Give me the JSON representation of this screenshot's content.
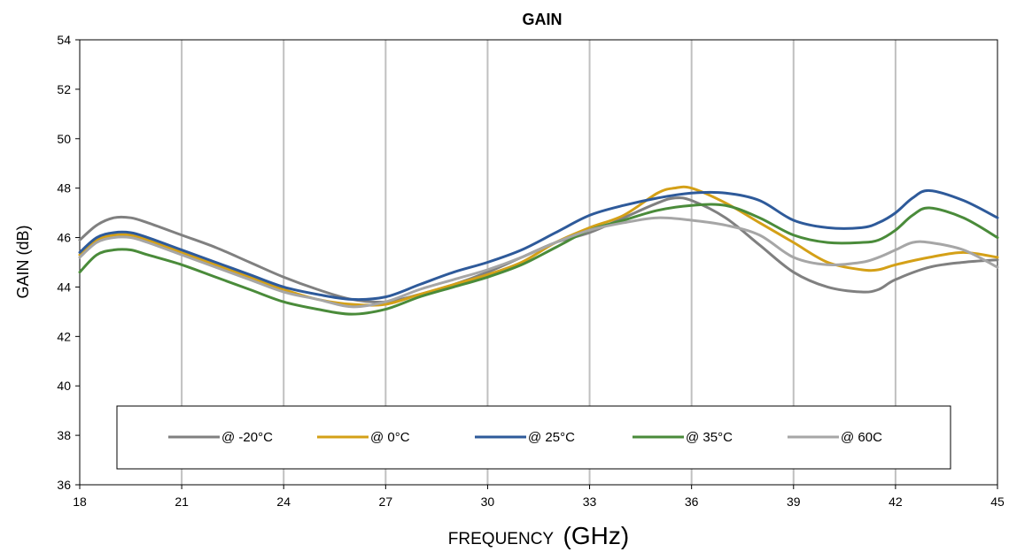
{
  "chart_data": {
    "type": "line",
    "title": "GAIN",
    "xlabel": "FREQUENCY",
    "xlabel_unit": "(GHz)",
    "ylabel": "GAIN (dB)",
    "xlim": [
      18,
      45
    ],
    "ylim": [
      36,
      54
    ],
    "xticks": [
      18,
      21,
      24,
      27,
      30,
      33,
      36,
      39,
      42,
      45
    ],
    "yticks": [
      36,
      38,
      40,
      42,
      44,
      46,
      48,
      50,
      52,
      54
    ],
    "grid": "vertical",
    "legend_position": "bottom-inside",
    "series": [
      {
        "name": "@ -20°C",
        "color": "#808080",
        "x": [
          18,
          18.5,
          19,
          19.5,
          20,
          21,
          22,
          23,
          24,
          25,
          26,
          27,
          28,
          29,
          30,
          31,
          32,
          33,
          34,
          35,
          35.5,
          36,
          37,
          38,
          39,
          40,
          41,
          41.5,
          42,
          43,
          44,
          45
        ],
        "y": [
          45.9,
          46.5,
          46.8,
          46.8,
          46.6,
          46.1,
          45.6,
          45.0,
          44.4,
          43.9,
          43.5,
          43.4,
          43.7,
          44.1,
          44.6,
          45.2,
          45.8,
          46.2,
          46.8,
          47.4,
          47.6,
          47.5,
          46.8,
          45.7,
          44.6,
          44.0,
          43.8,
          43.9,
          44.3,
          44.8,
          45.0,
          45.1
        ]
      },
      {
        "name": "@ 0°C",
        "color": "#D4A017",
        "x": [
          18,
          18.5,
          19,
          19.5,
          20,
          21,
          22,
          23,
          24,
          25,
          26,
          27,
          28,
          29,
          30,
          31,
          32,
          33,
          34,
          35,
          35.5,
          36,
          37,
          38,
          39,
          40,
          41,
          41.5,
          42,
          43,
          44,
          45
        ],
        "y": [
          45.3,
          45.9,
          46.1,
          46.1,
          45.9,
          45.4,
          44.9,
          44.4,
          43.9,
          43.5,
          43.3,
          43.3,
          43.7,
          44.1,
          44.5,
          45.0,
          45.8,
          46.4,
          46.9,
          47.8,
          48.0,
          48.0,
          47.4,
          46.6,
          45.8,
          45.0,
          44.7,
          44.7,
          44.9,
          45.2,
          45.4,
          45.2
        ]
      },
      {
        "name": "@ 25°C",
        "color": "#2E5A9A",
        "x": [
          18,
          18.5,
          19,
          19.5,
          20,
          21,
          22,
          23,
          24,
          25,
          26,
          27,
          28,
          29,
          30,
          31,
          32,
          33,
          34,
          35,
          36,
          37,
          38,
          39,
          40,
          41,
          41.5,
          42,
          42.5,
          43,
          44,
          45
        ],
        "y": [
          45.4,
          46.0,
          46.2,
          46.2,
          46.0,
          45.5,
          45.0,
          44.5,
          44.0,
          43.7,
          43.5,
          43.6,
          44.1,
          44.6,
          45.0,
          45.5,
          46.2,
          46.9,
          47.3,
          47.6,
          47.8,
          47.8,
          47.5,
          46.7,
          46.4,
          46.4,
          46.6,
          47.0,
          47.6,
          47.9,
          47.5,
          46.8
        ]
      },
      {
        "name": "@ 35°C",
        "color": "#4A8B3A",
        "x": [
          18,
          18.5,
          19,
          19.5,
          20,
          21,
          22,
          23,
          24,
          25,
          26,
          27,
          28,
          29,
          30,
          31,
          32,
          33,
          34,
          35,
          36,
          37,
          38,
          39,
          40,
          41,
          41.5,
          42,
          42.5,
          43,
          44,
          45
        ],
        "y": [
          44.6,
          45.3,
          45.5,
          45.5,
          45.3,
          44.9,
          44.4,
          43.9,
          43.4,
          43.1,
          42.9,
          43.1,
          43.6,
          44.0,
          44.4,
          44.9,
          45.6,
          46.3,
          46.7,
          47.1,
          47.3,
          47.3,
          46.8,
          46.1,
          45.8,
          45.8,
          45.9,
          46.3,
          46.9,
          47.2,
          46.8,
          46.0
        ]
      },
      {
        "name": "@ 60C",
        "color": "#A6A6A6",
        "x": [
          18,
          18.5,
          19,
          19.5,
          20,
          21,
          22,
          23,
          24,
          25,
          26,
          27,
          28,
          29,
          30,
          31,
          32,
          33,
          34,
          35,
          36,
          37,
          38,
          39,
          40,
          41,
          41.5,
          42,
          42.5,
          43,
          44,
          45
        ],
        "y": [
          45.2,
          45.8,
          46.0,
          46.0,
          45.8,
          45.3,
          44.8,
          44.3,
          43.8,
          43.5,
          43.2,
          43.4,
          43.9,
          44.3,
          44.7,
          45.2,
          45.8,
          46.3,
          46.6,
          46.8,
          46.7,
          46.5,
          46.1,
          45.2,
          44.9,
          45.0,
          45.2,
          45.5,
          45.8,
          45.8,
          45.5,
          44.8
        ]
      }
    ]
  }
}
